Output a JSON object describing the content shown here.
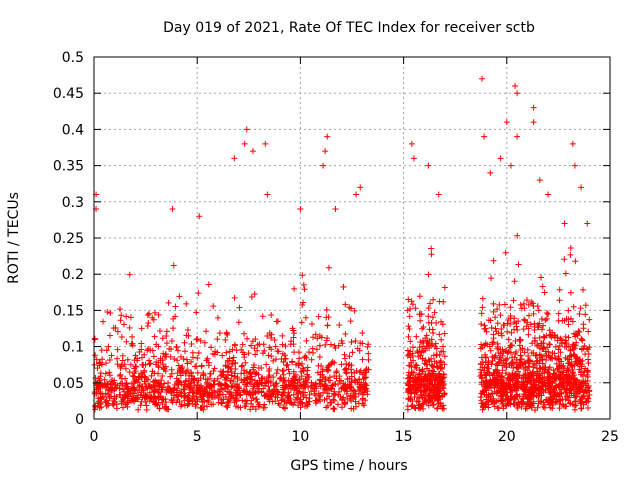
{
  "chart_data": {
    "type": "scatter",
    "title": "Day 019 of 2021, Rate Of TEC Index for receiver sctb",
    "xlabel": "GPS time / hours",
    "ylabel": "ROTI / TECUs",
    "xlim": [
      0,
      25
    ],
    "ylim": [
      0,
      0.5
    ],
    "x_ticks": [
      "0",
      "5",
      "10",
      "15",
      "20",
      "25"
    ],
    "y_ticks": [
      "0",
      "0.05",
      "0.1",
      "0.15",
      "0.2",
      "0.25",
      "0.3",
      "0.35",
      "0.4",
      "0.45",
      "0.5"
    ],
    "grid": true,
    "marker": "+",
    "color": "#ff0000",
    "series": [
      {
        "segments": [
          {
            "x_start": 0.0,
            "x_end": 13.3,
            "density": 1400,
            "scale": 0.07
          },
          {
            "x_start": 15.2,
            "x_end": 17.0,
            "density": 380,
            "scale": 0.09
          },
          {
            "x_start": 18.7,
            "x_end": 24.0,
            "density": 1100,
            "scale": 0.09
          }
        ],
        "peaks": [
          [
            0.1,
            0.31
          ],
          [
            0.1,
            0.29
          ],
          [
            3.8,
            0.29
          ],
          [
            5.1,
            0.28
          ],
          [
            6.8,
            0.36
          ],
          [
            7.4,
            0.4
          ],
          [
            7.3,
            0.38
          ],
          [
            7.7,
            0.37
          ],
          [
            8.3,
            0.38
          ],
          [
            8.4,
            0.31
          ],
          [
            10.0,
            0.29
          ],
          [
            11.1,
            0.35
          ],
          [
            11.2,
            0.37
          ],
          [
            11.3,
            0.39
          ],
          [
            11.7,
            0.29
          ],
          [
            12.7,
            0.31
          ],
          [
            12.9,
            0.32
          ],
          [
            15.2,
            0.15
          ],
          [
            15.4,
            0.38
          ],
          [
            15.5,
            0.36
          ],
          [
            16.2,
            0.35
          ],
          [
            16.7,
            0.31
          ],
          [
            18.8,
            0.47
          ],
          [
            18.9,
            0.39
          ],
          [
            19.2,
            0.34
          ],
          [
            19.7,
            0.36
          ],
          [
            20.0,
            0.41
          ],
          [
            20.2,
            0.35
          ],
          [
            20.4,
            0.46
          ],
          [
            20.5,
            0.45
          ],
          [
            20.5,
            0.39
          ],
          [
            21.3,
            0.43
          ],
          [
            21.3,
            0.41
          ],
          [
            21.6,
            0.33
          ],
          [
            22.0,
            0.31
          ],
          [
            23.2,
            0.38
          ],
          [
            23.3,
            0.35
          ],
          [
            23.6,
            0.32
          ],
          [
            22.8,
            0.27
          ],
          [
            23.9,
            0.27
          ]
        ]
      }
    ]
  }
}
